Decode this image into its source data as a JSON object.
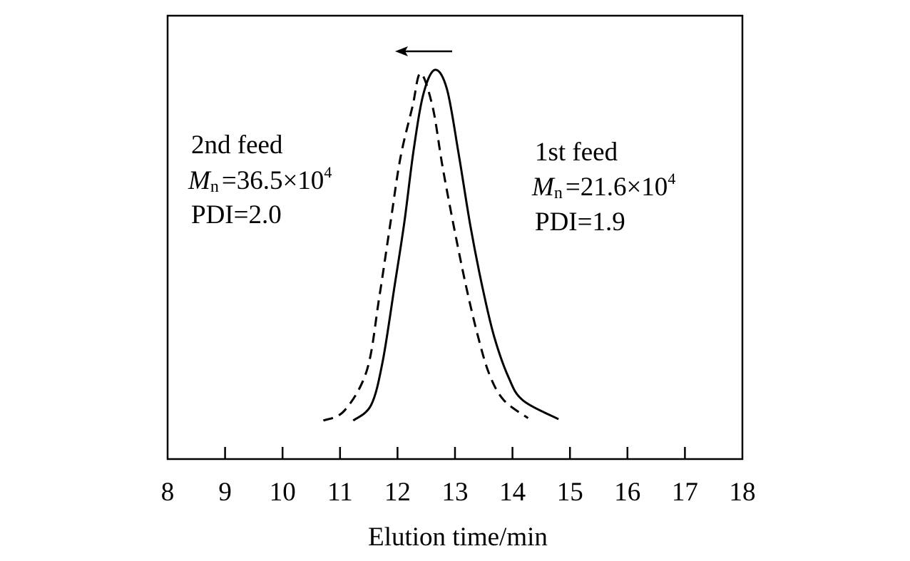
{
  "chart_data": {
    "type": "line",
    "title": "",
    "xlabel": "Elution time/min",
    "ylabel": "",
    "xlim": [
      8,
      18
    ],
    "ylim": [
      0,
      1
    ],
    "xticks": [
      "8",
      "9",
      "10",
      "11",
      "12",
      "13",
      "14",
      "15",
      "16",
      "17",
      "18"
    ],
    "grid": false,
    "shift_arrow": "left",
    "series": [
      {
        "name": "1st feed",
        "style": "solid",
        "color": "#000000",
        "x": [
          11.23,
          11.54,
          11.74,
          11.95,
          12.12,
          12.28,
          12.45,
          12.65,
          12.86,
          13.06,
          13.27,
          13.48,
          13.68,
          13.93,
          14.18,
          14.8
        ],
        "y": [
          0,
          0.044,
          0.167,
          0.385,
          0.567,
          0.771,
          0.931,
          1.0,
          0.945,
          0.764,
          0.553,
          0.378,
          0.24,
          0.124,
          0.058,
          0.004
        ]
      },
      {
        "name": "2nd feed",
        "style": "dashed",
        "color": "#000000",
        "x": [
          10.71,
          11.08,
          11.47,
          11.68,
          11.88,
          12.05,
          12.26,
          12.4,
          12.61,
          12.78,
          12.98,
          13.19,
          13.4,
          13.6,
          13.85,
          14.27
        ],
        "y": [
          0,
          0.029,
          0.145,
          0.349,
          0.567,
          0.749,
          0.895,
          0.99,
          0.895,
          0.727,
          0.553,
          0.385,
          0.24,
          0.131,
          0.058,
          0.007
        ]
      }
    ],
    "annotations": {
      "second": {
        "title": "2nd feed",
        "mn_symbol": "M",
        "mn_sub": "n",
        "mn_value": "=36.5×10",
        "mn_exp": "4",
        "pdi": "PDI=2.0"
      },
      "first": {
        "title": "1st feed",
        "mn_symbol": "M",
        "mn_sub": "n",
        "mn_value": "=21.6×10",
        "mn_exp": "4",
        "pdi": "PDI=1.9"
      }
    }
  }
}
